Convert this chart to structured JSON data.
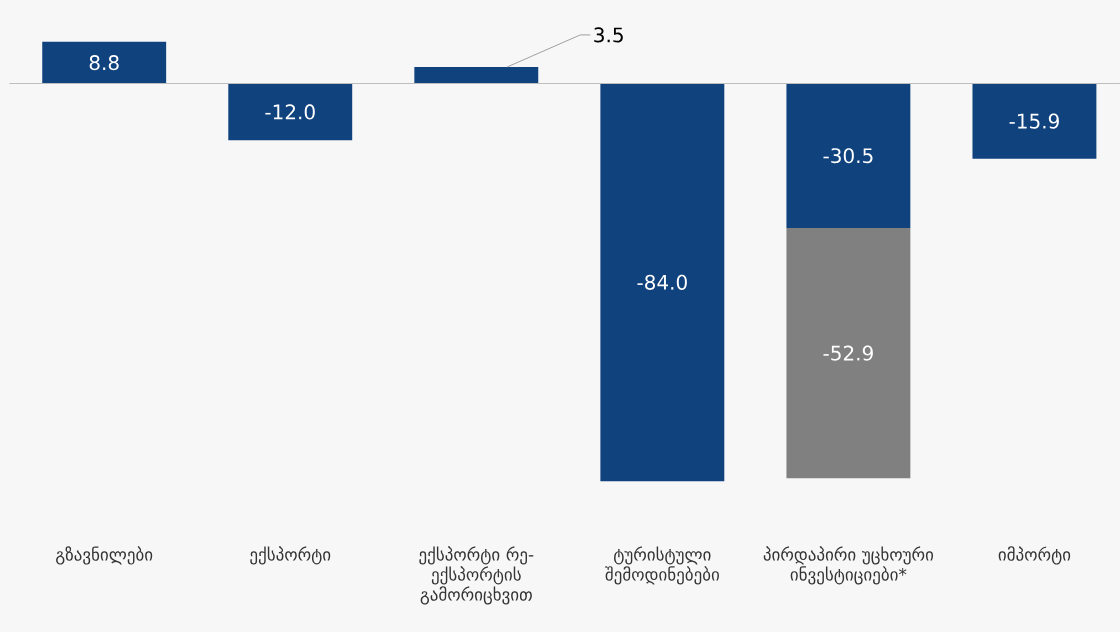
{
  "chart_data": {
    "type": "bar",
    "stacked": true,
    "categories": [
      "გზავნილები",
      "ექსპორტი",
      "ექსპორტი რე-ექსპორტის გამორიცხვით",
      "ტურისტული შემოდინებები",
      "პირდაპირი უცხოური ინვესტიციები*",
      "იმპორტი"
    ],
    "series": [
      {
        "color": "#10427e",
        "values": [
          8.8,
          -12.0,
          3.5,
          -84.0,
          -30.5,
          -15.9
        ],
        "value_labels": [
          "8.8",
          "-12.0",
          "3.5",
          "-84.0",
          "-30.5",
          "-15.9"
        ]
      },
      {
        "color": "#808080",
        "values": [
          null,
          null,
          null,
          null,
          -52.9,
          null
        ],
        "value_labels": [
          null,
          null,
          null,
          null,
          "-52.9",
          null
        ]
      }
    ]
  }
}
